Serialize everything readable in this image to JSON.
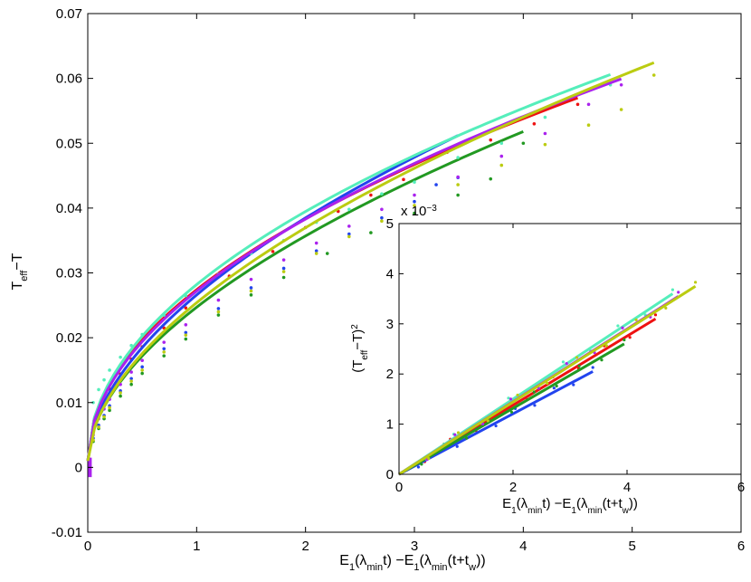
{
  "chart_data": [
    {
      "id": "main",
      "type": "line",
      "xlabel": "E1(λmin t) −E1(λmin(t+tw))",
      "ylabel": "Teff−T",
      "xlim": [
        0,
        6
      ],
      "ylim": [
        -0.01,
        0.07
      ],
      "xticks": [
        0,
        1,
        2,
        3,
        4,
        5,
        6
      ],
      "xtick_labels": [
        "0",
        "1",
        "2",
        "3",
        "4",
        "5",
        "6"
      ],
      "yticks": [
        -0.01,
        0,
        0.01,
        0.02,
        0.03,
        0.04,
        0.05,
        0.06,
        0.07
      ],
      "ytick_labels": [
        "-0.01",
        "0",
        "0.01",
        "0.02",
        "0.03",
        "0.04",
        "0.05",
        "0.06",
        "0.07"
      ],
      "series": [
        {
          "color": "#ee1111",
          "fit_xmax": 4.5,
          "fit_coef": 0.0264,
          "fit_pow": 0.5,
          "x": [
            0.05,
            0.1,
            0.15,
            0.2,
            0.3,
            0.4,
            0.5,
            0.7,
            0.9,
            1.3,
            1.7,
            2.0,
            2.3,
            2.6,
            2.9,
            3.3,
            3.7,
            4.1,
            4.5
          ],
          "y": [
            0.0062,
            0.0088,
            0.0104,
            0.0121,
            0.0144,
            0.0167,
            0.0186,
            0.0215,
            0.0246,
            0.0295,
            0.0333,
            0.037,
            0.0395,
            0.042,
            0.0444,
            0.0486,
            0.0505,
            0.053,
            0.056
          ]
        },
        {
          "color": "#2244ee",
          "fit_xmax": 3.4,
          "fit_coef": 0.0256,
          "fit_pow": 0.55,
          "x": [
            0.05,
            0.1,
            0.15,
            0.2,
            0.3,
            0.4,
            0.5,
            0.7,
            0.9,
            1.2,
            1.5,
            1.8,
            2.1,
            2.4,
            2.7,
            3.0,
            3.2,
            3.4
          ],
          "y": [
            0.0045,
            0.0065,
            0.008,
            0.0095,
            0.0118,
            0.0137,
            0.0155,
            0.0183,
            0.0208,
            0.0245,
            0.0277,
            0.0307,
            0.0334,
            0.036,
            0.0385,
            0.041,
            0.0436,
            0.0447
          ]
        },
        {
          "color": "#229922",
          "fit_xmax": 4.0,
          "fit_coef": 0.0237,
          "fit_pow": 0.55,
          "x": [
            0.05,
            0.1,
            0.15,
            0.2,
            0.3,
            0.4,
            0.5,
            0.7,
            0.9,
            1.2,
            1.5,
            1.8,
            2.2,
            2.6,
            3.0,
            3.4,
            3.7,
            4.0
          ],
          "y": [
            0.004,
            0.006,
            0.0075,
            0.0088,
            0.011,
            0.0128,
            0.0145,
            0.0172,
            0.0198,
            0.0235,
            0.0266,
            0.0293,
            0.033,
            0.0362,
            0.0392,
            0.042,
            0.0445,
            0.05
          ]
        },
        {
          "color": "#55eebb",
          "fit_xmax": 4.8,
          "fit_coef": 0.0272,
          "fit_pow": 0.5,
          "x": [
            0.05,
            0.1,
            0.15,
            0.2,
            0.3,
            0.4,
            0.5,
            0.7,
            0.9,
            1.2,
            1.5,
            1.8,
            2.1,
            2.4,
            2.7,
            3.0,
            3.4,
            3.8,
            4.2,
            4.8
          ],
          "y": [
            0.01,
            0.012,
            0.0135,
            0.015,
            0.017,
            0.0188,
            0.0205,
            0.0235,
            0.0265,
            0.0298,
            0.033,
            0.035,
            0.0378,
            0.0398,
            0.0422,
            0.044,
            0.0478,
            0.05,
            0.054,
            0.059
          ]
        },
        {
          "color": "#aa22ee",
          "fit_xmax": 4.9,
          "fit_coef": 0.0262,
          "fit_pow": 0.51,
          "x": [
            0.05,
            0.1,
            0.15,
            0.2,
            0.3,
            0.4,
            0.5,
            0.7,
            0.9,
            1.2,
            1.5,
            1.8,
            2.1,
            2.4,
            2.7,
            3.0,
            3.4,
            3.8,
            4.2,
            4.6,
            4.9
          ],
          "y": [
            0.005,
            0.0075,
            0.009,
            0.0105,
            0.0128,
            0.0147,
            0.0165,
            0.0193,
            0.022,
            0.0258,
            0.029,
            0.032,
            0.0346,
            0.0372,
            0.0398,
            0.042,
            0.0448,
            0.048,
            0.0515,
            0.056,
            0.059
          ]
        },
        {
          "color": "#bbcc11",
          "fit_xmax": 5.2,
          "fit_coef": 0.0244,
          "fit_pow": 0.56,
          "x": [
            0.05,
            0.1,
            0.15,
            0.2,
            0.3,
            0.4,
            0.5,
            0.7,
            0.9,
            1.2,
            1.5,
            1.8,
            2.1,
            2.4,
            2.7,
            3.0,
            3.4,
            3.8,
            4.2,
            4.6,
            4.9,
            5.2
          ],
          "y": [
            0.0042,
            0.0062,
            0.0078,
            0.0092,
            0.0115,
            0.0133,
            0.015,
            0.0178,
            0.0204,
            0.024,
            0.0272,
            0.0302,
            0.033,
            0.0356,
            0.038,
            0.0404,
            0.0436,
            0.0466,
            0.0498,
            0.0528,
            0.0552,
            0.0605
          ]
        }
      ]
    },
    {
      "id": "inset",
      "type": "line",
      "xlabel": "E1(λmin t) −E1(λmin(t+tw))",
      "ylabel": "(Teff−T)2",
      "exponent_label": "x 10−3",
      "xlim": [
        0,
        6
      ],
      "ylim": [
        0,
        5
      ],
      "xticks": [
        0,
        2,
        4,
        6
      ],
      "xtick_labels": [
        "0",
        "2",
        "4",
        "6"
      ],
      "yticks": [
        0,
        1,
        2,
        3,
        4,
        5
      ],
      "ytick_labels": [
        "0",
        "1",
        "2",
        "3",
        "4",
        "5"
      ],
      "series": [
        {
          "color": "#ee1111",
          "x0": 0,
          "y0": 0,
          "x1": 4.5,
          "y1": 3.1
        },
        {
          "color": "#2244ee",
          "x0": 0,
          "y0": 0,
          "x1": 3.4,
          "y1": 2.05
        },
        {
          "color": "#229922",
          "x0": 0,
          "y0": 0,
          "x1": 3.95,
          "y1": 2.6
        },
        {
          "color": "#55eebb",
          "x0": 0,
          "y0": 0,
          "x1": 4.8,
          "y1": 3.6
        },
        {
          "color": "#aa22ee",
          "x0": 0,
          "y0": 0,
          "x1": 4.9,
          "y1": 3.55
        },
        {
          "color": "#bbcc11",
          "x0": 0,
          "y0": 0,
          "x1": 5.2,
          "y1": 3.75
        }
      ]
    }
  ]
}
